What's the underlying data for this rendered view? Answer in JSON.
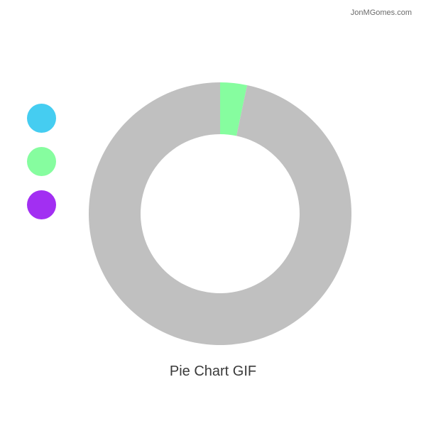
{
  "watermark": "JonMGomes.com",
  "colors": {
    "background": "#ffffff",
    "remainder": "#c0c0c0"
  },
  "chart_data": {
    "type": "pie",
    "variant": "donut",
    "title": "Pie Chart GIF",
    "legend_placement": "left",
    "legend": [
      {
        "color": "#45cdf1"
      },
      {
        "color": "#86fd9f"
      },
      {
        "color": "#a22ff2"
      }
    ],
    "slices": [
      {
        "series_index": 1,
        "color": "#86fd9f",
        "percent": 3.3
      },
      {
        "series_index": null,
        "color": "#c0c0c0",
        "percent": 96.7
      }
    ]
  }
}
